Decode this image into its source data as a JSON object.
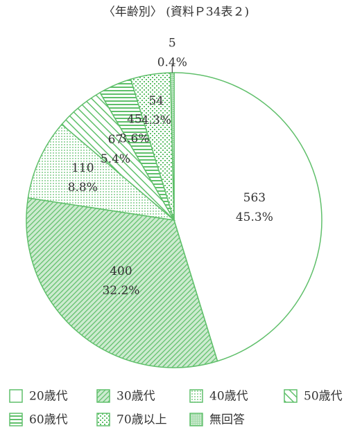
{
  "chart_data": {
    "type": "pie",
    "title": "〈年齢別〉 (資料Ｐ34表２)",
    "categories": [
      "20歳代",
      "30歳代",
      "40歳代",
      "50歳代",
      "60歳代",
      "70歳以上",
      "無回答"
    ],
    "values": [
      563,
      400,
      110,
      67,
      45,
      54,
      5
    ],
    "percentages": [
      45.3,
      32.2,
      8.8,
      5.4,
      3.6,
      4.3,
      0.4
    ],
    "percentage_labels": [
      "45.3%",
      "32.2%",
      "8.8%",
      "5.4%",
      "3.6%",
      "4.3%",
      "0.4%"
    ],
    "color": "#5fbf6a",
    "legend": "bottom"
  }
}
